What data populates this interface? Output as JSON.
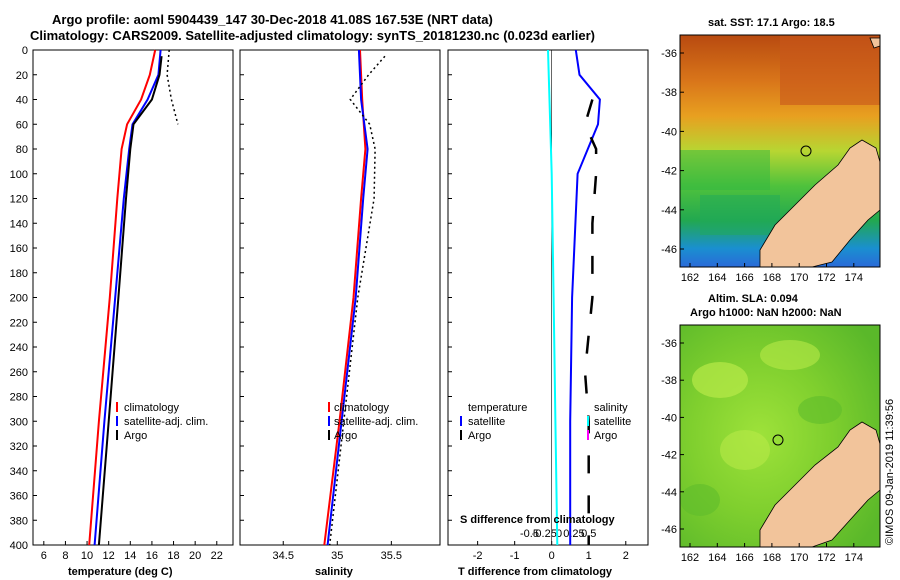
{
  "header": {
    "line1": "Argo profile: aoml 5904439_147 30-Dec-2018 41.08S 167.53E (NRT data)",
    "line2": "Climatology: CARS2009. Satellite-adjusted climatology: synTS_20181230.nc (0.023d earlier)"
  },
  "map_labels": {
    "sst_title": "sat. SST: 17.1 Argo: 18.5",
    "sla_title1": "Altim. SLA: 0.094",
    "sla_title2": "Argo h1000: NaN h2000: NaN",
    "watermark": "©IMOS 09-Jan-2019 11:39:56",
    "lat_ticks_top": [
      "-36",
      "-38",
      "-40",
      "-42",
      "-44",
      "-46"
    ],
    "lat_ticks_bottom": [
      "-36",
      "-38",
      "-40",
      "-42",
      "-44",
      "-46"
    ],
    "lon_ticks": [
      "162",
      "164",
      "166",
      "168",
      "170",
      "172",
      "174"
    ]
  },
  "colors": {
    "climatology": "#ff0000",
    "satellite": "#0000ff",
    "argo": "#000000",
    "salinity_satellite": "#00ffff",
    "salinity_argo": "#ff00ff"
  },
  "chart_data": [
    {
      "type": "line",
      "id": "temperature",
      "xlabel": "temperature (deg C)",
      "ylabel": "",
      "xlim": [
        5,
        23.5
      ],
      "ylim": [
        400,
        0
      ],
      "xticks": [
        "6",
        "8",
        "10",
        "12",
        "14",
        "16",
        "18",
        "20",
        "22"
      ],
      "yticks": [
        "0",
        "20",
        "40",
        "60",
        "80",
        "100",
        "120",
        "140",
        "160",
        "180",
        "200",
        "220",
        "240",
        "260",
        "280",
        "300",
        "320",
        "340",
        "360",
        "380",
        "400"
      ],
      "legend": [
        "climatology",
        "satellite-adj. clim.",
        "Argo"
      ],
      "series": [
        {
          "name": "climatology",
          "depth": [
            0,
            20,
            40,
            60,
            80,
            120,
            200,
            300,
            400
          ],
          "values": [
            16.3,
            15.8,
            15.0,
            13.7,
            13.2,
            12.8,
            12.1,
            11.1,
            10.2
          ]
        },
        {
          "name": "satellite-adj. clim.",
          "depth": [
            0,
            20,
            40,
            60,
            80,
            120,
            200,
            300,
            400
          ],
          "values": [
            16.8,
            16.6,
            15.6,
            14.2,
            13.9,
            13.4,
            12.6,
            11.6,
            10.7
          ]
        },
        {
          "name": "Argo",
          "depth": [
            5,
            20,
            40,
            60,
            80,
            120,
            200,
            300,
            400
          ],
          "values": [
            16.9,
            16.7,
            16.0,
            14.3,
            14.0,
            13.6,
            12.9,
            12.0,
            11.1
          ]
        },
        {
          "name": "Argo surface",
          "depth": [
            0,
            20,
            40,
            60
          ],
          "values": [
            17.6,
            17.4,
            17.8,
            18.4
          ]
        }
      ]
    },
    {
      "type": "line",
      "id": "salinity",
      "xlabel": "salinity",
      "xlim": [
        34.1,
        35.95
      ],
      "ylim": [
        400,
        0
      ],
      "xticks": [
        "34.5",
        "35",
        "35.5"
      ],
      "legend": [
        "climatology",
        "satellite-adj. clim.",
        "Argo"
      ],
      "series": [
        {
          "name": "climatology",
          "depth": [
            0,
            40,
            80,
            120,
            200,
            300,
            400
          ],
          "values": [
            35.21,
            35.23,
            35.26,
            35.22,
            35.15,
            35.02,
            34.88
          ]
        },
        {
          "name": "satellite-adj. clim.",
          "depth": [
            0,
            40,
            80,
            120,
            200,
            300,
            400
          ],
          "values": [
            35.2,
            35.22,
            35.28,
            35.24,
            35.17,
            35.04,
            34.91
          ]
        },
        {
          "name": "Argo",
          "depth": [
            5,
            20,
            40,
            60,
            80,
            120,
            200,
            300,
            400
          ],
          "values": [
            35.44,
            35.29,
            35.12,
            35.3,
            35.35,
            35.34,
            35.19,
            35.06,
            34.93
          ]
        }
      ]
    },
    {
      "type": "line",
      "id": "difference",
      "xlabel": "T difference from climatology",
      "xlabel_top": "S difference from climatology",
      "xlim": [
        -2.8,
        2.6
      ],
      "xticks": [
        "-2",
        "-1",
        "0",
        "1",
        "2"
      ],
      "xticks_s": [
        "-0.5",
        "-0.25",
        "0",
        "0.25",
        "0.5"
      ],
      "legend_t_header": "temperature",
      "legend_s_header": "salinity",
      "legend_t": [
        "satellite",
        "Argo"
      ],
      "legend_s": [
        "satellite",
        "Argo"
      ],
      "series": [
        {
          "name": "T satellite",
          "depth": [
            0,
            20,
            40,
            60,
            100,
            200,
            300,
            400
          ],
          "values": [
            0.65,
            0.75,
            1.3,
            1.25,
            0.7,
            0.55,
            0.5,
            0.5
          ]
        },
        {
          "name": "S satellite",
          "depth": [
            0,
            100,
            200,
            300,
            400
          ],
          "values": [
            -0.1,
            0.0,
            0.05,
            0.1,
            0.15
          ]
        },
        {
          "name": "T Argo",
          "depth": [
            40,
            60,
            80,
            100,
            140,
            200,
            260,
            300,
            400
          ],
          "values": [
            1.1,
            0.9,
            1.2,
            1.2,
            1.1,
            1.1,
            0.9,
            1.0,
            1.0
          ]
        }
      ]
    }
  ]
}
